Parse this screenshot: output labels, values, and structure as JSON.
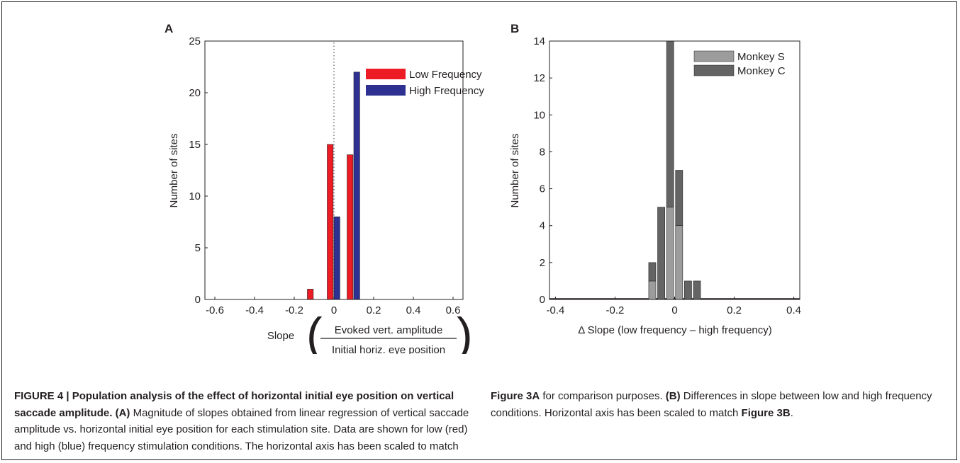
{
  "colors": {
    "low_frequency": "#ed1c24",
    "high_frequency": "#2e3192",
    "monkey_s": "#9c9c9c",
    "monkey_c": "#646464",
    "axis": "#231f20"
  },
  "chart_data": [
    {
      "panel": "A",
      "type": "bar",
      "ylabel": "Number of sites",
      "xlabel_prefix": "Slope",
      "xlabel_fraction": {
        "numerator": "Evoked vert. amplitude",
        "denominator": "Initial horiz. eye position"
      },
      "xlim": [
        -0.65,
        0.65
      ],
      "ylim": [
        0,
        25
      ],
      "xticks": [
        "-0.6",
        "-0.4",
        "-0.2",
        "0",
        "0.2",
        "0.4",
        "0.6"
      ],
      "xtick_values": [
        -0.6,
        -0.4,
        -0.2,
        0,
        0.2,
        0.4,
        0.6
      ],
      "yticks": [
        "0",
        "5",
        "10",
        "15",
        "20",
        "25"
      ],
      "ytick_values": [
        0,
        5,
        10,
        15,
        20,
        25
      ],
      "bin_centers": [
        -0.1,
        0,
        0.1
      ],
      "series": [
        {
          "name": "Low Frequency",
          "values": [
            1,
            15,
            14
          ]
        },
        {
          "name": "High Frequency",
          "values": [
            0,
            8,
            22
          ]
        }
      ],
      "reference_line": 0,
      "legend_position": "top-right",
      "grid": false
    },
    {
      "panel": "B",
      "type": "bar",
      "stacked": true,
      "ylabel": "Number of sites",
      "xlabel": "Δ Slope (low frequency – high frequency)",
      "xlim": [
        -0.42,
        0.42
      ],
      "ylim": [
        0,
        14
      ],
      "xticks": [
        "-0.4",
        "-0.2",
        "0",
        "0.2",
        "0.4"
      ],
      "xtick_values": [
        -0.4,
        -0.2,
        0,
        0.2,
        0.4
      ],
      "yticks": [
        "0",
        "2",
        "4",
        "6",
        "8",
        "10",
        "12",
        "14"
      ],
      "ytick_values": [
        0,
        2,
        4,
        6,
        8,
        10,
        12,
        14
      ],
      "bin_centers": [
        -0.075,
        -0.045,
        -0.015,
        0.015,
        0.045,
        0.075
      ],
      "series": [
        {
          "name": "Monkey S",
          "values": [
            1,
            0,
            5,
            4,
            0,
            0
          ]
        },
        {
          "name": "Monkey C",
          "values": [
            1,
            5,
            9,
            3,
            1,
            1
          ]
        }
      ],
      "reference_line": 0,
      "legend_position": "top-right",
      "grid": false
    }
  ],
  "caption": {
    "title": "FIGURE 4 | Population analysis of the effect of horizontal initial eye position on vertical saccade amplitude.",
    "a_label": "(A)",
    "a_text": "Magnitude of slopes obtained from linear regression of vertical saccade amplitude vs. horizontal initial eye position for each stimulation site. Data are shown for low (red) and high (blue) frequency stimulation conditions. The horizontal axis has been scaled to match",
    "a_ref": "Figure 3A",
    "a_end": "for comparison purposes.",
    "b_label": "(B)",
    "b_text": "Differences in slope between low and high frequency conditions. Horizontal axis has been scaled to match",
    "b_ref": "Figure 3B",
    "b_end": "."
  }
}
